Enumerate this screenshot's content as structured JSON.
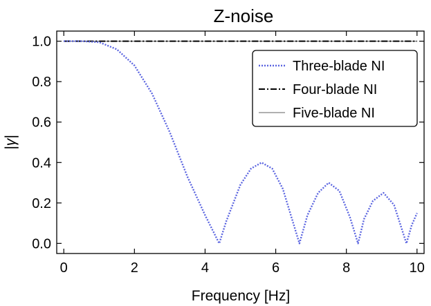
{
  "chart_data": {
    "type": "line",
    "title": "Z-noise",
    "xlabel": "Frequency [Hz]",
    "ylabel": "|γ|",
    "xlim": [
      -0.2,
      10.2
    ],
    "ylim": [
      -0.05,
      1.05
    ],
    "xticks": [
      0,
      2,
      4,
      6,
      8,
      10
    ],
    "xtick_labels": [
      "0",
      "2",
      "4",
      "6",
      "8",
      "10"
    ],
    "yticks": [
      0.0,
      0.2,
      0.4,
      0.6,
      0.8,
      1.0
    ],
    "ytick_labels": [
      "0.0",
      "0.2",
      "0.4",
      "0.6",
      "0.8",
      "1.0"
    ],
    "grid": false,
    "legend_position": "top-right",
    "series": [
      {
        "name": "Three-blade NI",
        "color": "#5a64e0",
        "style": "dotted",
        "x": [
          0,
          0.5,
          1.0,
          1.5,
          2.0,
          2.5,
          3.0,
          3.5,
          4.0,
          4.4,
          4.6,
          5.0,
          5.3,
          5.6,
          5.9,
          6.2,
          6.67,
          6.9,
          7.2,
          7.5,
          7.8,
          8.1,
          8.33,
          8.5,
          8.75,
          9.05,
          9.35,
          9.7,
          9.85,
          10.0
        ],
        "values": [
          1.0,
          1.0,
          0.995,
          0.96,
          0.88,
          0.74,
          0.55,
          0.33,
          0.14,
          0.0,
          0.11,
          0.29,
          0.37,
          0.4,
          0.37,
          0.27,
          0.0,
          0.14,
          0.25,
          0.3,
          0.26,
          0.13,
          0.0,
          0.12,
          0.21,
          0.25,
          0.19,
          0.0,
          0.09,
          0.15
        ]
      },
      {
        "name": "Four-blade NI",
        "color": "#000000",
        "style": "dash-dot",
        "x": [
          0,
          10
        ],
        "values": [
          1.0,
          1.0
        ]
      },
      {
        "name": "Five-blade NI",
        "color": "#808080",
        "style": "solid",
        "x": [
          0,
          10
        ],
        "values": [
          1.0,
          1.0
        ]
      }
    ]
  }
}
